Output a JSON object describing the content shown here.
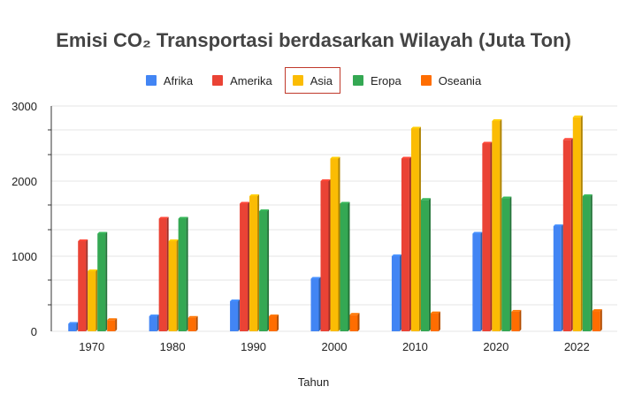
{
  "chart_data": {
    "type": "bar",
    "title": "Emisi CO₂ Transportasi berdasarkan Wilayah (Juta Ton)",
    "xlabel": "Tahun",
    "ylabel": "",
    "ylim": [
      0,
      3000
    ],
    "yticks": [
      0,
      1000,
      2000,
      3000
    ],
    "grid": true,
    "legend_position": "top",
    "highlighted_legend": "Asia",
    "categories": [
      "1970",
      "1980",
      "1990",
      "2000",
      "2010",
      "2020",
      "2022"
    ],
    "series": [
      {
        "name": "Afrika",
        "color": "#4285f4",
        "values": [
          100,
          200,
          400,
          700,
          1000,
          1300,
          1400
        ]
      },
      {
        "name": "Amerika",
        "color": "#ea4335",
        "values": [
          1200,
          1500,
          1700,
          2000,
          2300,
          2500,
          2550
        ]
      },
      {
        "name": "Asia",
        "color": "#fbbc04",
        "values": [
          800,
          1200,
          1800,
          2300,
          2700,
          2800,
          2850
        ]
      },
      {
        "name": "Eropa",
        "color": "#34a853",
        "values": [
          1300,
          1500,
          1600,
          1700,
          1750,
          1770,
          1800
        ]
      },
      {
        "name": "Oseania",
        "color": "#ff6d01",
        "values": [
          150,
          180,
          200,
          220,
          240,
          260,
          270
        ]
      }
    ]
  }
}
